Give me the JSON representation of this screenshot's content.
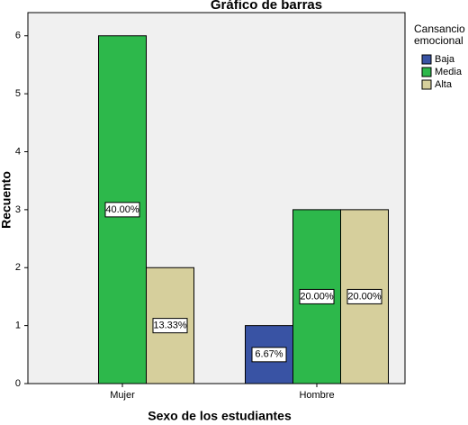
{
  "chart_data": {
    "type": "bar",
    "title": "Gráfico de barras",
    "x_label": "Sexo de los estudiantes",
    "y_label": "Recuento",
    "categories": [
      "Mujer",
      "Hombre"
    ],
    "legend_title": [
      "Cansancio",
      "emocional"
    ],
    "series": [
      {
        "name": "Baja",
        "color": "#3953a4",
        "values": [
          null,
          1
        ],
        "percents": [
          null,
          6.67
        ],
        "percent_labels": [
          null,
          "6.67%"
        ]
      },
      {
        "name": "Media",
        "color": "#2db84b",
        "values": [
          6,
          3
        ],
        "percents": [
          40,
          20
        ],
        "percent_labels": [
          "40.00%",
          "20.00%"
        ]
      },
      {
        "name": "Alta",
        "color": "#d6cf9c",
        "values": [
          2,
          3
        ],
        "percents": [
          13.33,
          20
        ],
        "percent_labels": [
          "13.33%",
          "20.00%"
        ]
      }
    ],
    "ylim": [
      0,
      6.4
    ],
    "yticks": [
      0,
      1,
      2,
      3,
      4,
      5,
      6
    ],
    "grid": false
  }
}
